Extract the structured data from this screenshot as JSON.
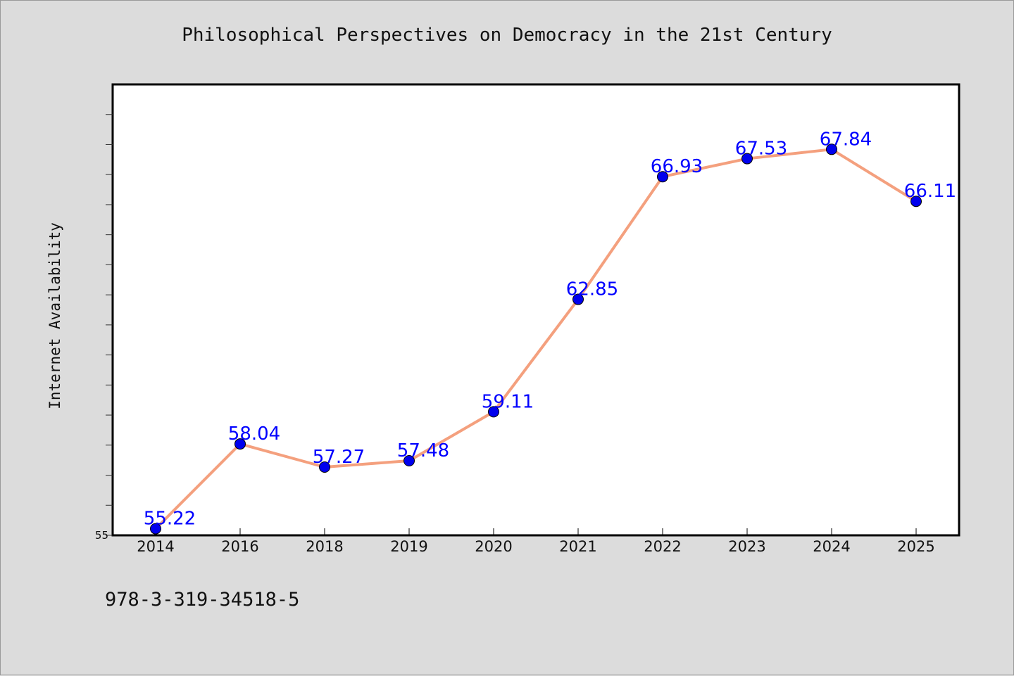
{
  "title": "Philosophical Perspectives on Democracy in the 21st Century",
  "footer_text": "978-3-319-34518-5",
  "chart_data": {
    "type": "line",
    "title": "Philosophical Perspectives on Democracy in the 21st Century",
    "xlabel": "",
    "ylabel": "Internet Availability",
    "categories": [
      "2014",
      "2016",
      "2018",
      "2019",
      "2020",
      "2021",
      "2022",
      "2023",
      "2024",
      "2025"
    ],
    "series": [
      {
        "values": [
          55.22,
          58.04,
          57.27,
          57.48,
          59.11,
          62.85,
          66.93,
          67.53,
          67.84,
          66.11
        ],
        "data_labels": [
          "55.22",
          "58.04",
          "57.27",
          "57.48",
          "59.11",
          "62.85",
          "66.93",
          "67.53",
          "67.84",
          "66.11"
        ]
      }
    ],
    "ylim": [
      55,
      70
    ],
    "y_tick_labels": [
      "55"
    ],
    "grid": false,
    "legend": "none",
    "colors": {
      "line": "#f4a07e",
      "marker": "#0000ee",
      "label": "#0000ff",
      "plot_background": "#ffffff",
      "figure_background": "#dcdcdc"
    }
  }
}
